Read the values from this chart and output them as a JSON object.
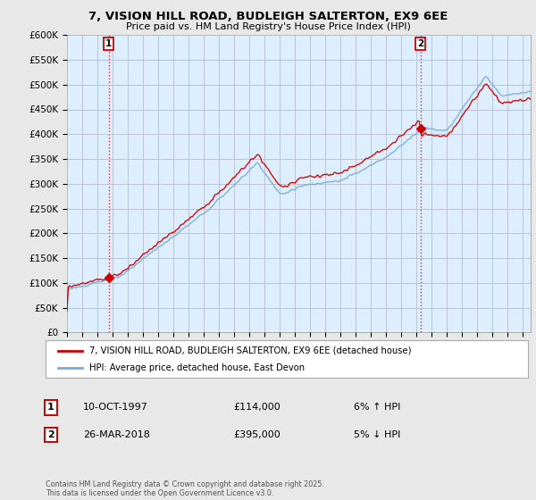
{
  "title1": "7, VISION HILL ROAD, BUDLEIGH SALTERTON, EX9 6EE",
  "title2": "Price paid vs. HM Land Registry's House Price Index (HPI)",
  "legend_line1": "7, VISION HILL ROAD, BUDLEIGH SALTERTON, EX9 6EE (detached house)",
  "legend_line2": "HPI: Average price, detached house, East Devon",
  "annotation1_date": "10-OCT-1997",
  "annotation1_price": "£114,000",
  "annotation1_hpi": "6% ↑ HPI",
  "annotation1_year": 1997.78,
  "annotation1_value": 114000,
  "annotation2_date": "26-MAR-2018",
  "annotation2_price": "£395,000",
  "annotation2_hpi": "5% ↓ HPI",
  "annotation2_year": 2018.22,
  "annotation2_value": 395000,
  "red_color": "#cc0000",
  "blue_color": "#7aaacf",
  "fill_color": "#ddeeff",
  "background_color": "#e8e8e8",
  "plot_bg_color": "#ddeeff",
  "grid_color": "#bbbbcc",
  "ylim": [
    0,
    600000
  ],
  "xlim_start": 1995.0,
  "xlim_end": 2025.5,
  "footer": "Contains HM Land Registry data © Crown copyright and database right 2025.\nThis data is licensed under the Open Government Licence v3.0."
}
